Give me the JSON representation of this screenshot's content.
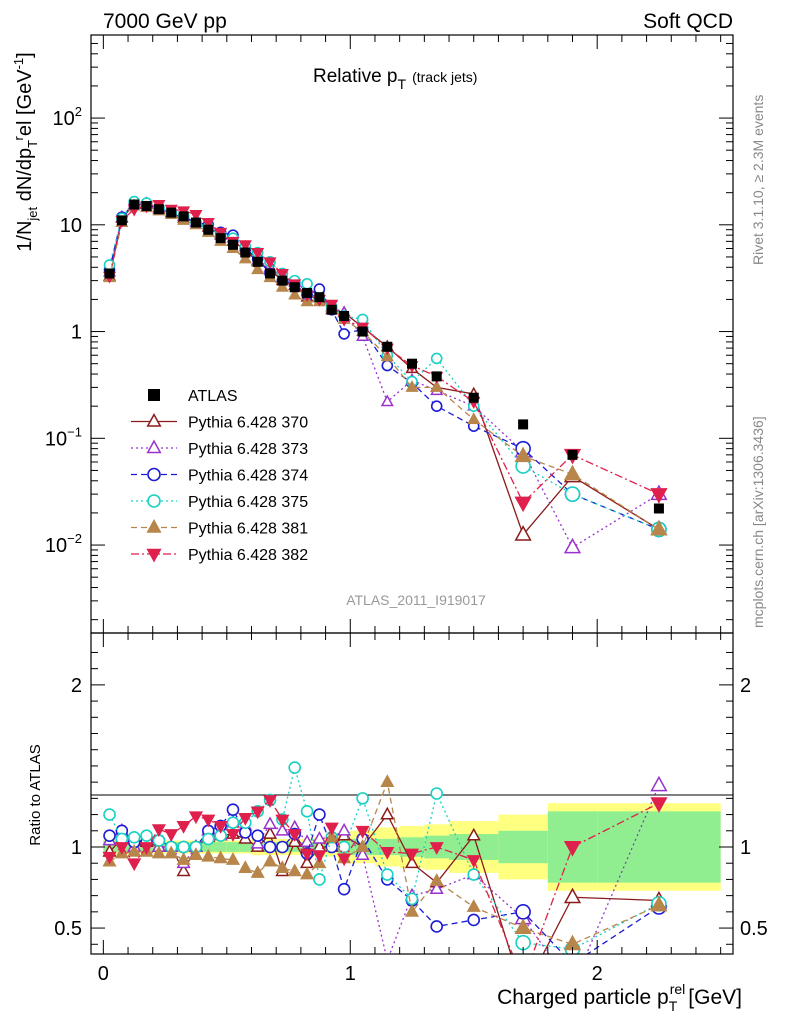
{
  "header": {
    "left": "7000 GeV pp",
    "right": "Soft QCD"
  },
  "side_labels": {
    "rivet": "Rivet 3.1.10, ≥ 2.3M events",
    "mcplots": "mcplots.cern.ch [arXiv:1306.3436]"
  },
  "analysis_id": "ATLAS_2011_I919017",
  "colors": {
    "ATLAS": "#000000",
    "p370": "#8b1a1a",
    "p373": "#9932cc",
    "p374": "#1c1cd6",
    "p375": "#17d1c2",
    "p381": "#b8864b",
    "p382": "#e0204c",
    "band_inner": "#90ee90",
    "band_outer": "#ffff80"
  },
  "chart_data": [
    {
      "type": "scatter",
      "title": "Relative pT (track jets)",
      "title_main": "Relative p",
      "title_sub": "T",
      "title_suffix": "(track jets)",
      "ylabel": "1/N_jet dN/dp_T^rel [GeV^-1]",
      "yscale": "log",
      "ylim": [
        0.0015,
        600
      ],
      "xlim": [
        -0.05,
        2.55
      ],
      "y_ticks": [
        {
          "value": 0.01,
          "label": "10",
          "exp": "−2"
        },
        {
          "value": 0.1,
          "label": "10",
          "exp": "−1"
        },
        {
          "value": 1,
          "label": "1",
          "exp": ""
        },
        {
          "value": 10,
          "label": "10",
          "exp": ""
        },
        {
          "value": 100,
          "label": "10",
          "exp": "2"
        }
      ],
      "legend_position": "left-center",
      "x": [
        0.025,
        0.075,
        0.125,
        0.175,
        0.225,
        0.275,
        0.325,
        0.375,
        0.425,
        0.475,
        0.525,
        0.575,
        0.625,
        0.675,
        0.725,
        0.775,
        0.825,
        0.875,
        0.925,
        0.975,
        1.05,
        1.15,
        1.25,
        1.35,
        1.5,
        1.7,
        1.9,
        2.25
      ],
      "series": [
        {
          "name": "ATLAS",
          "key": "ATLAS",
          "marker": "square",
          "line": "none",
          "values": [
            3.5,
            11,
            15.5,
            15,
            14,
            13,
            12,
            10.5,
            9,
            7.5,
            6.5,
            5.5,
            4.5,
            3.5,
            3.0,
            2.6,
            2.3,
            2.1,
            1.6,
            1.4,
            1.0,
            0.72,
            0.5,
            0.38,
            0.24,
            0.135,
            0.07,
            0.022
          ]
        },
        {
          "name": "Pythia 6.428 370",
          "key": "p370",
          "marker": "triangle-up-open",
          "line": "solid",
          "values": [
            3.3,
            11.5,
            15.5,
            15.5,
            14,
            13,
            11.5,
            10.5,
            9.5,
            8,
            7,
            5.8,
            4.5,
            3.8,
            3.0,
            2.7,
            2.1,
            2.1,
            1.6,
            1.5,
            1.1,
            0.72,
            0.45,
            0.3,
            0.26,
            0.0125,
            0.044,
            0.014
          ]
        },
        {
          "name": "Pythia 6.428 373",
          "key": "p373",
          "marker": "triangle-up-open",
          "line": "dotted",
          "values": [
            3.6,
            11.8,
            15.5,
            15.8,
            14.5,
            13,
            12,
            10.5,
            10,
            8,
            7.5,
            6.2,
            4.6,
            4.0,
            3.2,
            2.9,
            2.4,
            2.2,
            1.7,
            1.5,
            0.9,
            0.22,
            0.35,
            0.28,
            0.2,
            0.075,
            0.0095,
            0.03
          ]
        },
        {
          "name": "Pythia 6.428 374",
          "key": "p374",
          "marker": "circle-open",
          "line": "dashed",
          "values": [
            3.8,
            11.8,
            16,
            15.5,
            14.5,
            13,
            12,
            10.5,
            10,
            8.5,
            8.0,
            6.0,
            4.8,
            3.5,
            3.0,
            2.8,
            2.2,
            2.5,
            1.6,
            0.95,
            1.05,
            0.48,
            0.33,
            0.2,
            0.13,
            0.08,
            0.03,
            0.014
          ]
        },
        {
          "name": "Pythia 6.428 375",
          "key": "p375",
          "marker": "circle-open",
          "line": "dotted",
          "values": [
            4.2,
            11.5,
            16.5,
            16,
            14.5,
            13,
            12,
            10.5,
            9.5,
            8,
            7.5,
            6.3,
            5.5,
            4.5,
            3.5,
            3.0,
            2.8,
            2.0,
            1.7,
            1.4,
            1.3,
            0.6,
            0.34,
            0.56,
            0.2,
            0.055,
            0.03,
            0.014
          ]
        },
        {
          "name": "Pythia 6.428 381",
          "key": "p381",
          "marker": "triangle-up-filled",
          "line": "dashed",
          "values": [
            3.2,
            10.5,
            15,
            14.5,
            13.5,
            12.5,
            11,
            10,
            8.5,
            7,
            6.0,
            4.8,
            3.8,
            3.2,
            2.6,
            2.2,
            1.9,
            1.9,
            1.7,
            1.3,
            1.0,
            0.58,
            0.3,
            0.3,
            0.15,
            0.068,
            0.046,
            0.014
          ]
        },
        {
          "name": "Pythia 6.428 382",
          "key": "p382",
          "marker": "triangle-down-filled",
          "line": "dashdot",
          "values": [
            3.3,
            11,
            14,
            15,
            15.5,
            14,
            13.5,
            12.5,
            10.5,
            8.5,
            7.0,
            6.5,
            5.5,
            4.5,
            3.5,
            2.8,
            2.2,
            2.0,
            1.8,
            1.3,
            1.1,
            0.7,
            0.48,
            0.38,
            0.22,
            0.025,
            0.07,
            0.03
          ]
        }
      ]
    },
    {
      "type": "line",
      "ylabel": "Ratio to ATLAS",
      "ylim": [
        0.34,
        2.32
      ],
      "xlim": [
        -0.05,
        2.55
      ],
      "xlabel": "Charged particle p_T^rel [GeV]",
      "xlabel_main": "Charged particle p",
      "xlabel_sub": "T",
      "xlabel_sup": "rel",
      "xlabel_unit": "[GeV]",
      "x_ticks": [
        {
          "value": 0,
          "label": "0"
        },
        {
          "value": 1,
          "label": "1"
        },
        {
          "value": 2,
          "label": "2"
        }
      ],
      "y_ticks": [
        {
          "value": 0.5,
          "label": "0.5"
        },
        {
          "value": 1,
          "label": "1"
        },
        {
          "value": 2,
          "label": "2"
        }
      ],
      "band_edges": [
        0,
        0.05,
        0.1,
        0.15,
        0.2,
        0.25,
        0.3,
        0.35,
        0.4,
        0.45,
        0.5,
        0.55,
        0.6,
        0.65,
        0.7,
        0.75,
        0.8,
        0.85,
        0.9,
        0.95,
        1.0,
        1.1,
        1.2,
        1.3,
        1.4,
        1.6,
        1.8,
        2.0,
        2.5
      ],
      "band_inner_half_width": [
        0.04,
        0.03,
        0.03,
        0.03,
        0.03,
        0.03,
        0.03,
        0.03,
        0.03,
        0.03,
        0.03,
        0.03,
        0.03,
        0.03,
        0.03,
        0.03,
        0.03,
        0.03,
        0.03,
        0.04,
        0.05,
        0.05,
        0.06,
        0.07,
        0.08,
        0.1,
        0.22,
        0.22
      ],
      "band_outer_half_width": [
        0.06,
        0.05,
        0.04,
        0.04,
        0.04,
        0.04,
        0.04,
        0.04,
        0.04,
        0.04,
        0.04,
        0.04,
        0.05,
        0.05,
        0.05,
        0.05,
        0.05,
        0.06,
        0.06,
        0.08,
        0.1,
        0.12,
        0.13,
        0.14,
        0.16,
        0.2,
        0.27,
        0.27
      ],
      "series": [
        {
          "name": "Pythia 6.428 370",
          "key": "p370",
          "values": [
            0.97,
            1.05,
            1.0,
            1.03,
            1.0,
            1.0,
            0.85,
            1.0,
            1.06,
            1.07,
            1.08,
            1.05,
            1.0,
            1.08,
            0.85,
            1.03,
            0.9,
            1.0,
            1.0,
            1.07,
            1.0,
            1.2,
            0.9,
            0.78,
            1.07,
            0.1,
            0.69,
            0.67
          ]
        },
        {
          "name": "Pythia 6.428 373",
          "key": "p373",
          "values": [
            1.04,
            1.1,
            1.0,
            1.05,
            1.0,
            1.0,
            0.9,
            1.0,
            1.1,
            1.07,
            1.15,
            1.13,
            1.02,
            1.14,
            1.1,
            1.12,
            1.03,
            1.05,
            1.06,
            1.1,
            0.95,
            0.3,
            0.7,
            0.74,
            0.83,
            0.56,
            0.14,
            1.38
          ]
        },
        {
          "name": "Pythia 6.428 374",
          "key": "p374",
          "values": [
            1.07,
            1.1,
            1.03,
            1.03,
            1.04,
            1.0,
            1.0,
            1.0,
            1.1,
            1.13,
            1.23,
            1.09,
            1.07,
            1.0,
            1.0,
            1.08,
            0.96,
            1.2,
            1.0,
            0.74,
            1.05,
            0.8,
            0.67,
            0.51,
            0.55,
            0.6,
            0.28,
            0.63
          ]
        },
        {
          "name": "Pythia 6.428 375",
          "key": "p375",
          "values": [
            1.2,
            1.05,
            1.06,
            1.07,
            1.04,
            1.0,
            1.0,
            1.0,
            1.05,
            1.07,
            1.15,
            1.15,
            1.22,
            1.29,
            1.17,
            1.49,
            1.22,
            0.8,
            1.06,
            1.0,
            1.3,
            0.83,
            0.68,
            1.33,
            0.83,
            0.41,
            0.37,
            0.65
          ]
        },
        {
          "name": "Pythia 6.428 381",
          "key": "p381",
          "values": [
            0.91,
            0.96,
            0.97,
            0.97,
            0.96,
            0.96,
            0.92,
            0.95,
            0.94,
            0.93,
            0.92,
            0.87,
            0.84,
            0.91,
            0.87,
            0.85,
            0.83,
            0.9,
            1.06,
            0.93,
            1.0,
            1.4,
            0.6,
            0.79,
            0.63,
            0.5,
            0.4,
            0.64
          ]
        },
        {
          "name": "Pythia 6.428 382",
          "key": "p382",
          "values": [
            0.94,
            1.0,
            0.9,
            1.0,
            1.11,
            1.08,
            1.13,
            1.19,
            1.17,
            1.13,
            1.08,
            1.18,
            1.22,
            1.29,
            1.17,
            1.08,
            0.96,
            0.95,
            1.12,
            0.93,
            1.1,
            0.97,
            0.96,
            1.0,
            0.92,
            0.18,
            1.0,
            1.27
          ]
        }
      ]
    }
  ]
}
